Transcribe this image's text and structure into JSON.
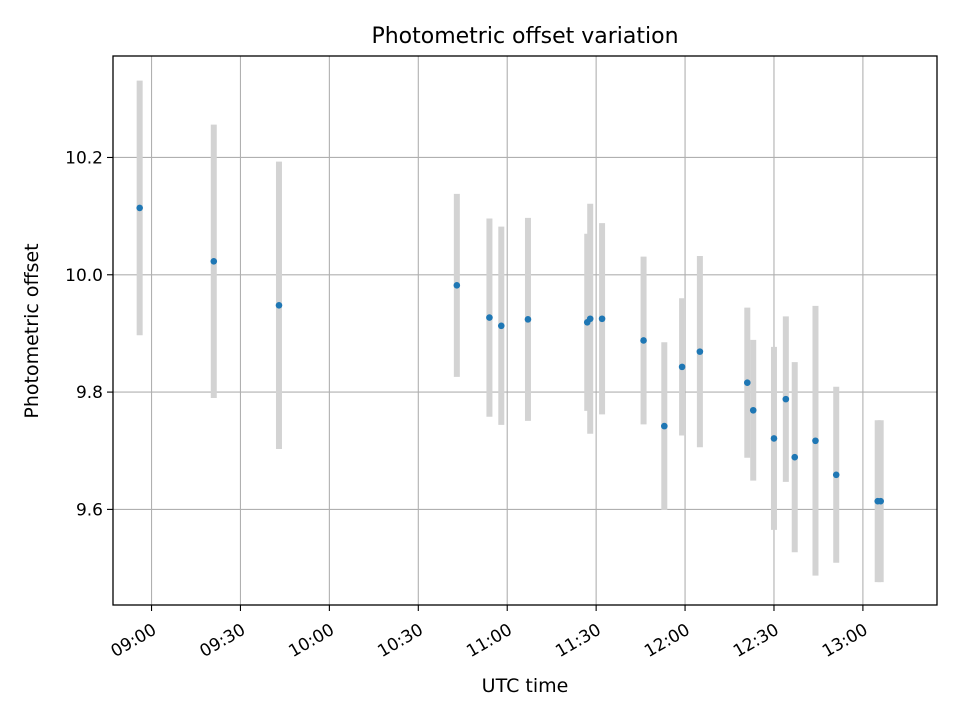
{
  "chart_data": {
    "type": "scatter",
    "title": "Photometric offset variation",
    "xlabel": "UTC time",
    "ylabel": "Photometric offset",
    "xlim": [
      "08:47",
      "13:25"
    ],
    "ylim": [
      9.437,
      10.373
    ],
    "x_ticks": [
      "09:00",
      "09:30",
      "10:00",
      "10:30",
      "11:00",
      "11:30",
      "12:00",
      "12:30",
      "13:00"
    ],
    "y_ticks": [
      9.6,
      9.8,
      10.0,
      10.2
    ],
    "y_tick_labels": [
      "9.6",
      "9.8",
      "10.0",
      "10.2"
    ],
    "grid": true,
    "colors": {
      "point": "#1f77b4",
      "errorbar": "#d3d3d3",
      "grid": "#b0b0b0"
    },
    "points": [
      {
        "x": "08:56",
        "y": 10.114,
        "yerr": 0.217
      },
      {
        "x": "09:21",
        "y": 10.023,
        "yerr": 0.233
      },
      {
        "x": "09:43",
        "y": 9.948,
        "yerr": 0.245
      },
      {
        "x": "10:43",
        "y": 9.982,
        "yerr": 0.156
      },
      {
        "x": "10:54",
        "y": 9.927,
        "yerr": 0.169
      },
      {
        "x": "10:58",
        "y": 9.913,
        "yerr": 0.169
      },
      {
        "x": "11:07",
        "y": 9.924,
        "yerr": 0.173
      },
      {
        "x": "11:27",
        "y": 9.919,
        "yerr": 0.151
      },
      {
        "x": "11:28",
        "y": 9.925,
        "yerr": 0.196
      },
      {
        "x": "11:32",
        "y": 9.925,
        "yerr": 0.163
      },
      {
        "x": "11:46",
        "y": 9.888,
        "yerr": 0.143
      },
      {
        "x": "11:53",
        "y": 9.742,
        "yerr": 0.143
      },
      {
        "x": "11:59",
        "y": 9.843,
        "yerr": 0.117
      },
      {
        "x": "12:05",
        "y": 9.869,
        "yerr": 0.163
      },
      {
        "x": "12:21",
        "y": 9.816,
        "yerr": 0.128
      },
      {
        "x": "12:23",
        "y": 9.769,
        "yerr": 0.12
      },
      {
        "x": "12:30",
        "y": 9.721,
        "yerr": 0.156
      },
      {
        "x": "12:34",
        "y": 9.788,
        "yerr": 0.141
      },
      {
        "x": "12:37",
        "y": 9.689,
        "yerr": 0.162
      },
      {
        "x": "12:44",
        "y": 9.717,
        "yerr": 0.23
      },
      {
        "x": "12:51",
        "y": 9.659,
        "yerr": 0.15
      },
      {
        "x": "13:05",
        "y": 9.614,
        "yerr": 0.138
      },
      {
        "x": "13:06",
        "y": 9.614,
        "yerr": 0.138
      }
    ]
  }
}
